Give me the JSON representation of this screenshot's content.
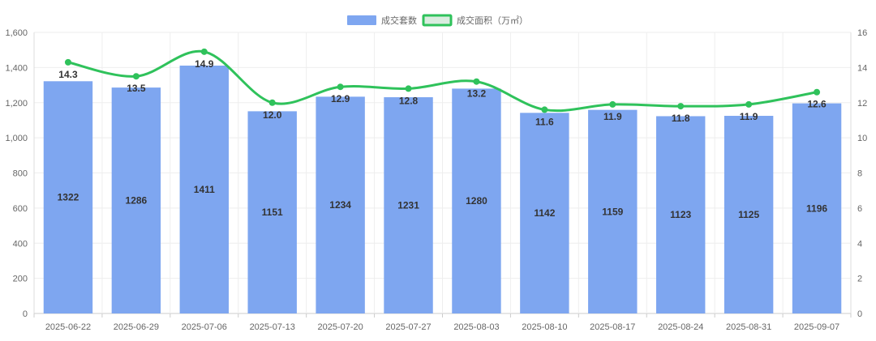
{
  "chart_data": {
    "type": "bar",
    "categories": [
      "2025-06-22",
      "2025-06-29",
      "2025-07-06",
      "2025-07-13",
      "2025-07-20",
      "2025-07-27",
      "2025-08-03",
      "2025-08-10",
      "2025-08-17",
      "2025-08-24",
      "2025-08-31",
      "2025-09-07"
    ],
    "series": [
      {
        "name": "成交套数",
        "type": "bar",
        "axis": "left",
        "color": "#7ea6f0",
        "values": [
          1322,
          1286,
          1411,
          1151,
          1234,
          1231,
          1280,
          1142,
          1159,
          1123,
          1125,
          1196
        ]
      },
      {
        "name": "成交面积（万㎡）",
        "type": "line",
        "axis": "right",
        "color": "#2fc25b",
        "values": [
          14.3,
          13.5,
          14.9,
          12.0,
          12.9,
          12.8,
          13.2,
          11.6,
          11.9,
          11.8,
          11.9,
          12.6
        ]
      }
    ],
    "y_left": {
      "min": 0,
      "max": 1600,
      "step": 200,
      "tick_labels": [
        "0",
        "200",
        "400",
        "600",
        "800",
        "1,000",
        "1,200",
        "1,400",
        "1,600"
      ]
    },
    "y_right": {
      "min": 0,
      "max": 16,
      "step": 2,
      "tick_labels": [
        "0",
        "2",
        "4",
        "6",
        "8",
        "10",
        "12",
        "14",
        "16"
      ]
    },
    "grid": true,
    "legend": "top-center",
    "bar_labels": [
      "1322",
      "1286",
      "1411",
      "1151",
      "1234",
      "1231",
      "1280",
      "1142",
      "1159",
      "1123",
      "1125",
      "1196"
    ],
    "line_labels": [
      "14.3",
      "13.5",
      "14.9",
      "12.0",
      "12.9",
      "12.8",
      "13.2",
      "11.6",
      "11.9",
      "11.8",
      "11.9",
      "12.6"
    ]
  }
}
